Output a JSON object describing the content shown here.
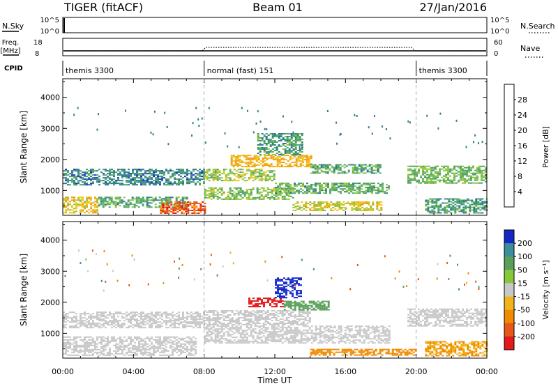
{
  "header": {
    "title": "TIGER (fitACF)",
    "beam": "Beam 01",
    "date": "27/Jan/2016"
  },
  "panels": {
    "nsky": {
      "label": "N.Sky",
      "ticks": [
        "10^5",
        "10^0"
      ],
      "right_label": "N.Search"
    },
    "freq": {
      "label_lines": [
        "Freq.",
        "[MHz]"
      ],
      "left_ticks": [
        "18",
        "8"
      ],
      "right_ticks": [
        "60",
        "0"
      ],
      "right_label": "Nave"
    },
    "cpid": {
      "label": "CPID",
      "segments": [
        {
          "start": 0,
          "end": 8,
          "text": "themis 3300"
        },
        {
          "start": 8,
          "end": 20,
          "text": "normal (fast) 151"
        },
        {
          "start": 20,
          "end": 24,
          "text": "themis 3300"
        }
      ]
    }
  },
  "power_panel": {
    "ylabel": "Slant Range [km]",
    "yticks": [
      "1000",
      "2000",
      "3000",
      "4000"
    ],
    "colorbar_label": "Power [dB]",
    "colorbar_ticks": [
      "4",
      "8",
      "12",
      "16",
      "20",
      "24",
      "28"
    ],
    "colors": [
      "#1a32c8",
      "#2e7d8a",
      "#4ea36a",
      "#8cc63f",
      "#f0c419",
      "#f39c12",
      "#e8561b",
      "#e31a1c"
    ]
  },
  "velocity_panel": {
    "ylabel": "Slant Range [km]",
    "yticks": [
      "1000",
      "2000",
      "3000",
      "4000"
    ],
    "colorbar_label": "Velocity [m s⁻¹]",
    "colorbar_ticks": [
      "200",
      "100",
      "50",
      "15",
      "-15",
      "-50",
      "-100",
      "-200"
    ],
    "colors": [
      "#1428c8",
      "#3e8d9a",
      "#5a9e5a",
      "#88c63a",
      "#c8c8c8",
      "#f0b419",
      "#f08a00",
      "#e8561b",
      "#e31a1c"
    ]
  },
  "xaxis": {
    "label": "Time UT",
    "ticks": [
      "00:00",
      "04:00",
      "08:00",
      "12:00",
      "16:00",
      "20:00",
      "00:00"
    ]
  },
  "chart_data": [
    {
      "type": "heatmap",
      "title": "TIGER (fitACF)",
      "subtitle": "Power",
      "xlabel": "Time UT",
      "ylabel": "Slant Range [km]",
      "xlim": [
        0,
        24
      ],
      "ylim": [
        200,
        4600
      ],
      "zlabel": "Power [dB]",
      "zlim": [
        0,
        32
      ],
      "regions": [
        {
          "t0": 0.0,
          "t1": 8.0,
          "r0": 1200,
          "r1": 1700,
          "z": 7
        },
        {
          "t0": 0.0,
          "t1": 2.0,
          "r0": 300,
          "r1": 800,
          "z": 18
        },
        {
          "t0": 2.0,
          "t1": 7.0,
          "r0": 450,
          "r1": 800,
          "z": 10
        },
        {
          "t0": 5.5,
          "t1": 8.0,
          "r0": 250,
          "r1": 650,
          "z": 26
        },
        {
          "t0": 8.0,
          "t1": 12.0,
          "r0": 1300,
          "r1": 1700,
          "z": 14
        },
        {
          "t0": 9.5,
          "t1": 14.0,
          "r0": 1750,
          "r1": 2150,
          "z": 20
        },
        {
          "t0": 8.0,
          "t1": 13.0,
          "r0": 700,
          "r1": 1100,
          "z": 13
        },
        {
          "t0": 12.0,
          "t1": 18.5,
          "r0": 900,
          "r1": 1250,
          "z": 11
        },
        {
          "t0": 11.0,
          "t1": 13.5,
          "r0": 2150,
          "r1": 2850,
          "z": 9
        },
        {
          "t0": 13.0,
          "t1": 18.0,
          "r0": 350,
          "r1": 650,
          "z": 17
        },
        {
          "t0": 14.0,
          "t1": 18.0,
          "r0": 1550,
          "r1": 1850,
          "z": 10
        },
        {
          "t0": 19.5,
          "t1": 24.0,
          "r0": 1250,
          "r1": 1800,
          "z": 12
        },
        {
          "t0": 20.5,
          "t1": 24.0,
          "r0": 300,
          "r1": 750,
          "z": 9
        }
      ]
    },
    {
      "type": "heatmap",
      "title": "TIGER (fitACF)",
      "subtitle": "Velocity",
      "xlabel": "Time UT",
      "ylabel": "Slant Range [km]",
      "xlim": [
        0,
        24
      ],
      "ylim": [
        200,
        4600
      ],
      "zlabel": "Velocity [m s⁻¹]",
      "zlim": [
        -250,
        250
      ],
      "regions": [
        {
          "t0": 0.0,
          "t1": 8.0,
          "r0": 1200,
          "r1": 1700,
          "z": 0
        },
        {
          "t0": 0.0,
          "t1": 7.5,
          "r0": 300,
          "r1": 900,
          "z": 0
        },
        {
          "t0": 8.0,
          "t1": 14.0,
          "r0": 1300,
          "r1": 1750,
          "z": 0
        },
        {
          "t0": 8.0,
          "t1": 18.5,
          "r0": 700,
          "r1": 1250,
          "z": 0
        },
        {
          "t0": 10.5,
          "t1": 12.5,
          "r0": 1850,
          "r1": 2150,
          "z": -220
        },
        {
          "t0": 12.0,
          "t1": 13.5,
          "r0": 2150,
          "r1": 2800,
          "z": 220
        },
        {
          "t0": 12.5,
          "t1": 15.0,
          "r0": 1750,
          "r1": 2050,
          "z": 40
        },
        {
          "t0": 14.0,
          "t1": 20.0,
          "r0": 280,
          "r1": 500,
          "z": -40
        },
        {
          "t0": 19.5,
          "t1": 24.0,
          "r0": 1250,
          "r1": 1800,
          "z": 0
        },
        {
          "t0": 20.5,
          "t1": 24.0,
          "r0": 300,
          "r1": 750,
          "z": -30
        }
      ]
    }
  ]
}
